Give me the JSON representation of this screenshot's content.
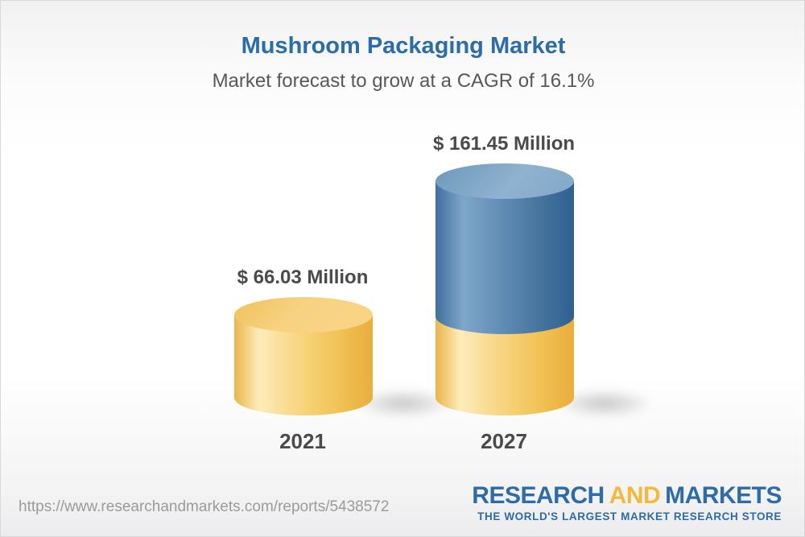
{
  "header": {
    "title": "Mushroom Packaging Market",
    "subtitle": "Market forecast to grow at a CAGR of 16.1%"
  },
  "chart_data": {
    "type": "bar",
    "variant": "3d-cylinder",
    "categories": [
      "2021",
      "2027"
    ],
    "values": [
      66.03,
      161.45
    ],
    "value_labels": [
      "$ 66.03 Million",
      "$ 161.45 Million"
    ],
    "unit": "USD Million",
    "cagr_percent": 16.1,
    "title": "Mushroom Packaging Market",
    "subtitle": "Market forecast to grow at a CAGR of 16.1%",
    "ylim": [
      0,
      175
    ],
    "grid": false,
    "legend": false,
    "colors": {
      "base_segment": "#F5CE6F",
      "growth_segment": "#4A7CA8",
      "title_text": "#2B6DA8",
      "label_text": "#4A4A4C"
    },
    "notes": "2027 bar is stacked: gold lower segment equals 2021 value, blue upper segment is incremental growth to 161.45"
  },
  "footer": {
    "url": "https://www.researchandmarkets.com/reports/5438572",
    "logo": {
      "part1": "RESEARCH",
      "part2": "AND",
      "part3": "MARKETS",
      "tagline": "THE WORLD'S LARGEST MARKET RESEARCH STORE",
      "blue": "#2D6CA8",
      "gold": "#F2B93C"
    }
  }
}
